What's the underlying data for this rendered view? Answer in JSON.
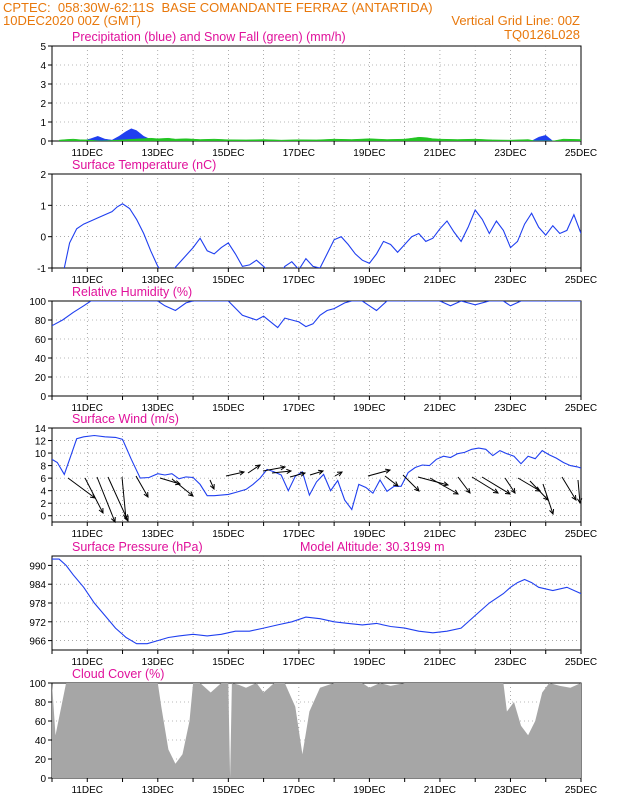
{
  "header": {
    "line1_left": "CPTEC:  058:30W-62:11S  BASE COMANDANTE FERRAZ (ANTARTIDA)",
    "line2_left": "10DEC2020 00Z (GMT)",
    "line2_right": "Vertical Grid Line: 00Z",
    "line3_right": "TQ0126L028"
  },
  "colors": {
    "header": "#e8780c",
    "title": "#e0119b",
    "line": "#1f3ff0",
    "precip": "#1f3ff0",
    "snow": "#22c422",
    "cloud": "#a6a6a6",
    "arrow": "#000000"
  },
  "x_ticks": [
    "11DEC",
    "13DEC",
    "15DEC",
    "17DEC",
    "19DEC",
    "21DEC",
    "23DEC",
    "25DEC"
  ],
  "chart_data": [
    {
      "id": "precip",
      "type": "area",
      "title": "Precipitation (blue) and Snow Fall (green) (mm/h)",
      "ylim": [
        0,
        5
      ],
      "yticks": [
        0,
        1,
        2,
        3,
        4,
        5
      ],
      "x_range_days": [
        10,
        25
      ],
      "series": [
        {
          "name": "Precipitation",
          "color": "#1f3ff0",
          "x": [
            10.6,
            10.9,
            11.1,
            11.3,
            11.5,
            11.7,
            11.9,
            12.1,
            12.25,
            12.4,
            12.6,
            12.8,
            13.0,
            13.2,
            23.6,
            23.8,
            24.0,
            24.2
          ],
          "values": [
            0,
            0.02,
            0.12,
            0.25,
            0.1,
            0.05,
            0.25,
            0.5,
            0.65,
            0.55,
            0.25,
            0.08,
            0.02,
            0,
            0,
            0.2,
            0.3,
            0
          ]
        },
        {
          "name": "Snow Fall",
          "color": "#22c422",
          "x": [
            10.2,
            10.4,
            10.6,
            10.8,
            11.0,
            11.4,
            12.8,
            13.0,
            13.3,
            13.5,
            13.8,
            14.2,
            14.6,
            15.0,
            15.5,
            16.0,
            16.5,
            17.0,
            17.5,
            18.0,
            18.5,
            19.0,
            19.5,
            20.0,
            20.2,
            20.4,
            20.6,
            20.8,
            21.0,
            21.5,
            22.0,
            22.5,
            23.0,
            23.5,
            23.7,
            24.2,
            24.5,
            25.0
          ],
          "values": [
            0.05,
            0.08,
            0.1,
            0.07,
            0.06,
            0,
            0.15,
            0.12,
            0.15,
            0.1,
            0.12,
            0.08,
            0.1,
            0.07,
            0.06,
            0.08,
            0.05,
            0.07,
            0.06,
            0.1,
            0.08,
            0.12,
            0.08,
            0.1,
            0.15,
            0.2,
            0.18,
            0.12,
            0.1,
            0.08,
            0.1,
            0.06,
            0.05,
            0.08,
            0,
            0,
            0.1,
            0.08
          ]
        }
      ]
    },
    {
      "id": "temp",
      "type": "line",
      "title": "Surface Temperature (nC)",
      "ylim": [
        -1,
        2
      ],
      "yticks": [
        -1,
        0,
        1,
        2
      ],
      "x": [
        10.35,
        10.5,
        10.7,
        10.9,
        11.1,
        11.3,
        11.5,
        11.7,
        11.85,
        12.0,
        12.2,
        12.4,
        12.6,
        12.8,
        13.0,
        13.2,
        13.4,
        13.6,
        13.8,
        14.0,
        14.2,
        14.4,
        14.6,
        14.8,
        15.0,
        15.2,
        15.4,
        15.6,
        15.8,
        16.0,
        16.2,
        16.4,
        16.6,
        16.8,
        17.0,
        17.2,
        17.4,
        17.6,
        17.8,
        18.0,
        18.2,
        18.4,
        18.6,
        18.8,
        19.0,
        19.2,
        19.4,
        19.6,
        19.8,
        20.0,
        20.2,
        20.4,
        20.6,
        20.8,
        21.0,
        21.2,
        21.4,
        21.6,
        21.8,
        22.0,
        22.2,
        22.4,
        22.6,
        22.8,
        23.0,
        23.2,
        23.4,
        23.6,
        23.8,
        24.0,
        24.2,
        24.4,
        24.6,
        24.8,
        25.0
      ],
      "values": [
        -1.0,
        -0.2,
        0.25,
        0.4,
        0.5,
        0.6,
        0.7,
        0.8,
        0.95,
        1.05,
        0.9,
        0.55,
        0.1,
        -0.45,
        -0.95,
        -1.2,
        -1.1,
        -0.85,
        -0.6,
        -0.35,
        -0.05,
        -0.45,
        -0.55,
        -0.35,
        -0.2,
        -0.55,
        -0.95,
        -0.9,
        -0.75,
        -0.95,
        -1.15,
        -1.3,
        -0.95,
        -0.8,
        -1.05,
        -0.7,
        -0.95,
        -1.0,
        -0.55,
        -0.1,
        0.0,
        -0.25,
        -0.55,
        -0.75,
        -0.85,
        -0.55,
        -0.15,
        -0.25,
        -0.5,
        -0.25,
        0.0,
        0.1,
        -0.15,
        -0.05,
        0.25,
        0.5,
        0.15,
        -0.15,
        0.3,
        0.85,
        0.55,
        0.1,
        0.5,
        0.2,
        -0.35,
        -0.15,
        0.4,
        0.75,
        0.3,
        0.05,
        0.35,
        0.1,
        0.2,
        0.7,
        0.1
      ]
    },
    {
      "id": "rh",
      "type": "line",
      "title": "Relative Humidity (%)",
      "ylim": [
        0,
        100
      ],
      "yticks": [
        0,
        20,
        40,
        60,
        80,
        100
      ],
      "x": [
        10.0,
        10.3,
        10.6,
        10.9,
        11.1,
        11.5,
        11.9,
        12.4,
        12.8,
        13.0,
        13.2,
        13.5,
        13.8,
        14.0,
        14.5,
        15.0,
        15.4,
        15.8,
        16.0,
        16.2,
        16.4,
        16.6,
        16.8,
        17.0,
        17.2,
        17.4,
        17.6,
        17.8,
        18.0,
        18.3,
        18.5,
        18.8,
        19.0,
        19.2,
        19.5,
        20.0,
        20.5,
        21.0,
        21.3,
        21.6,
        22.0,
        22.4,
        22.8,
        23.0,
        23.3,
        23.6,
        24.0,
        24.5,
        25.0
      ],
      "values": [
        74,
        80,
        88,
        95,
        100,
        100,
        100,
        100,
        100,
        100,
        95,
        90,
        98,
        100,
        100,
        100,
        85,
        80,
        84,
        78,
        72,
        82,
        80,
        78,
        73,
        76,
        85,
        90,
        92,
        98,
        100,
        100,
        95,
        90,
        100,
        100,
        100,
        100,
        95,
        100,
        96,
        100,
        100,
        95,
        100,
        100,
        100,
        100,
        100
      ]
    },
    {
      "id": "wind",
      "type": "line",
      "title": "Surface Wind (m/s)",
      "ylim": [
        -1,
        14
      ],
      "yticks": [
        0,
        2,
        4,
        6,
        8,
        10,
        12,
        14
      ],
      "x": [
        10.0,
        10.15,
        10.35,
        10.5,
        10.7,
        10.9,
        11.2,
        11.5,
        11.8,
        12.0,
        12.25,
        12.5,
        12.75,
        13.0,
        13.2,
        13.4,
        13.6,
        13.8,
        14.0,
        14.2,
        14.4,
        14.6,
        14.8,
        15.0,
        15.2,
        15.5,
        15.7,
        15.9,
        16.1,
        16.3,
        16.5,
        16.7,
        16.9,
        17.1,
        17.3,
        17.5,
        17.7,
        17.9,
        18.1,
        18.3,
        18.5,
        18.7,
        18.9,
        19.1,
        19.3,
        19.5,
        19.7,
        19.9,
        20.1,
        20.3,
        20.5,
        20.7,
        20.9,
        21.1,
        21.3,
        21.5,
        21.7,
        21.9,
        22.1,
        22.3,
        22.5,
        22.7,
        22.9,
        23.1,
        23.3,
        23.5,
        23.7,
        23.9,
        24.1,
        24.3,
        24.5,
        24.7,
        24.9,
        25.0
      ],
      "values": [
        9.0,
        8.5,
        6.6,
        9.0,
        12.3,
        12.6,
        12.8,
        12.6,
        12.5,
        12.2,
        9.0,
        6.0,
        6.1,
        6.7,
        6.5,
        6.7,
        5.9,
        6.2,
        6.1,
        5.0,
        3.2,
        3.2,
        3.3,
        3.4,
        3.7,
        4.2,
        5.0,
        6.0,
        7.4,
        7.0,
        6.5,
        4.0,
        6.3,
        7.0,
        3.3,
        5.4,
        6.6,
        4.0,
        5.6,
        2.5,
        1.0,
        5.0,
        4.5,
        3.6,
        5.7,
        3.9,
        4.7,
        4.7,
        6.9,
        7.7,
        8.1,
        8.0,
        9.0,
        9.5,
        9.3,
        9.9,
        10.1,
        10.6,
        10.8,
        10.6,
        9.6,
        10.4,
        9.9,
        9.5,
        8.3,
        9.5,
        9.1,
        10.4,
        9.7,
        9.2,
        8.5,
        8.0,
        7.8,
        7.6
      ]
    },
    {
      "id": "pressure",
      "type": "line",
      "title": "Surface Pressure (hPa)",
      "annotation": "Model Altitude: 30.3199 m",
      "ylim": [
        963,
        993
      ],
      "yticks": [
        966,
        972,
        978,
        984,
        990
      ],
      "x": [
        10.0,
        10.2,
        10.4,
        10.6,
        10.9,
        11.2,
        11.5,
        11.8,
        12.1,
        12.4,
        12.7,
        13.0,
        13.3,
        13.6,
        14.0,
        14.4,
        14.8,
        15.2,
        15.6,
        16.0,
        16.4,
        16.8,
        17.2,
        17.6,
        18.0,
        18.4,
        18.8,
        19.2,
        19.6,
        20.0,
        20.4,
        20.8,
        21.2,
        21.6,
        22.0,
        22.4,
        22.8,
        23.0,
        23.2,
        23.4,
        23.6,
        23.8,
        24.2,
        24.6,
        25.0
      ],
      "values": [
        992,
        992,
        990,
        987,
        983,
        978,
        974,
        970,
        967,
        965,
        965,
        966,
        967,
        967.5,
        968,
        967.5,
        968,
        969,
        969,
        970,
        971,
        972,
        973.5,
        973,
        972,
        971.5,
        971,
        971.5,
        970.5,
        970,
        969,
        968.5,
        969,
        970,
        974,
        978,
        981,
        983,
        984.5,
        985.5,
        984.5,
        983,
        982,
        983,
        981
      ]
    },
    {
      "id": "cloud",
      "type": "area",
      "title": "Cloud Cover (%)",
      "ylim": [
        0,
        100
      ],
      "yticks": [
        0,
        20,
        40,
        60,
        80,
        100
      ],
      "x": [
        10.0,
        10.1,
        10.4,
        10.8,
        11.2,
        11.6,
        12.0,
        12.4,
        12.8,
        13.0,
        13.1,
        13.3,
        13.5,
        13.7,
        13.9,
        14.0,
        14.2,
        14.5,
        14.8,
        15.0,
        15.05,
        15.1,
        15.3,
        15.5,
        15.8,
        16.0,
        16.3,
        16.6,
        16.9,
        17.1,
        17.3,
        17.6,
        18.0,
        18.4,
        18.8,
        19.0,
        19.3,
        19.6,
        20.0,
        20.5,
        21.0,
        21.5,
        22.0,
        22.4,
        22.8,
        22.9,
        23.1,
        23.3,
        23.5,
        23.7,
        23.9,
        24.1,
        24.4,
        24.7,
        25.0
      ],
      "values": [
        100,
        45,
        100,
        100,
        100,
        100,
        100,
        100,
        100,
        100,
        75,
        30,
        15,
        25,
        60,
        100,
        100,
        90,
        100,
        100,
        0,
        100,
        98,
        95,
        100,
        90,
        100,
        100,
        75,
        25,
        70,
        95,
        100,
        100,
        100,
        95,
        100,
        97,
        100,
        100,
        100,
        100,
        100,
        100,
        100,
        70,
        80,
        55,
        45,
        60,
        90,
        100,
        97,
        95,
        100
      ]
    }
  ]
}
